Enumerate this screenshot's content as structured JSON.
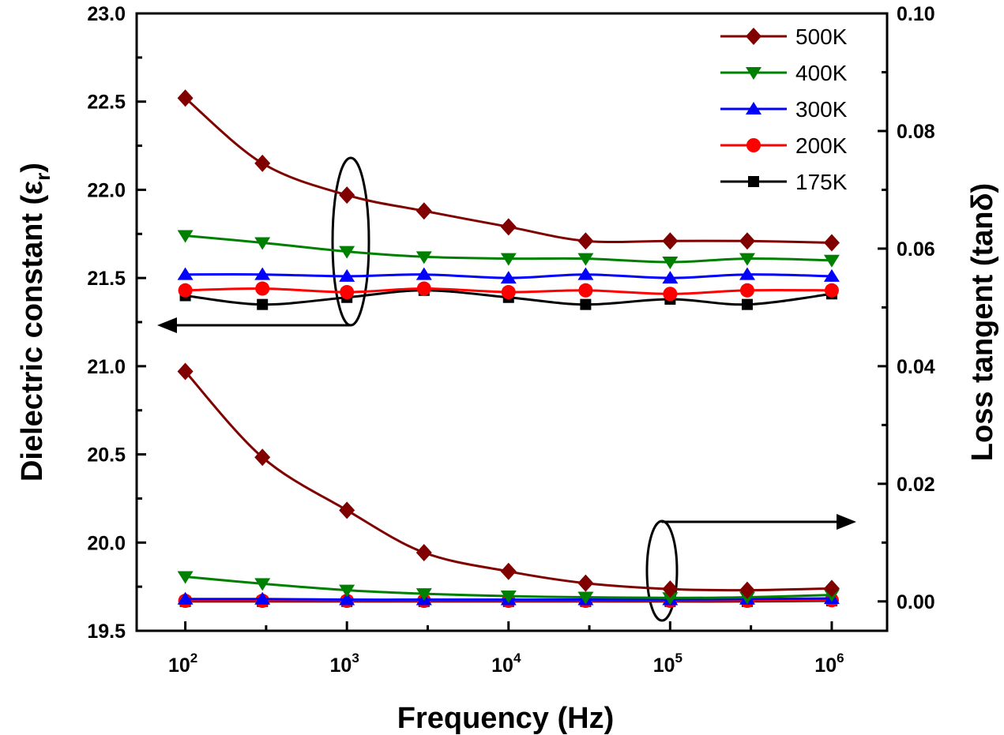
{
  "chart_data": {
    "type": "line",
    "xlabel": "Frequency (Hz)",
    "ylabel_left_main": "Dielectric constant (",
    "ylabel_left_symbol": "ε",
    "ylabel_left_sub": "r",
    "ylabel_left_close": ")",
    "ylabel_right": "Loss tangent (tanδ)",
    "x_scale": "log",
    "xlim": [
      50,
      2200000
    ],
    "ylim_left": [
      19.5,
      23.0
    ],
    "ylim_right": [
      -0.005,
      0.1
    ],
    "x_ticks": [
      {
        "value": 100,
        "base": "10",
        "exp": "2"
      },
      {
        "value": 1000,
        "base": "10",
        "exp": "3"
      },
      {
        "value": 10000,
        "base": "10",
        "exp": "4"
      },
      {
        "value": 100000,
        "base": "10",
        "exp": "5"
      },
      {
        "value": 1000000,
        "base": "10",
        "exp": "6"
      }
    ],
    "y_left_ticks": [
      "19.5",
      "20.0",
      "20.5",
      "21.0",
      "21.5",
      "22.0",
      "22.5",
      "23.0"
    ],
    "y_right_ticks": [
      "0.00",
      "0.02",
      "0.04",
      "0.06",
      "0.08",
      "0.10"
    ],
    "x": [
      100,
      300,
      1000,
      3000,
      10000,
      30000,
      100000,
      300000,
      1000000
    ],
    "legend_position": "top-right",
    "series": [
      {
        "name": "500K",
        "color": "#800000",
        "marker": "diamond",
        "dielectric_constant": [
          22.52,
          22.15,
          21.97,
          21.88,
          21.79,
          21.71,
          21.71,
          21.71,
          21.7
        ],
        "loss_tangent": [
          0.0391,
          0.0245,
          0.0155,
          0.0083,
          0.0051,
          0.0031,
          0.0021,
          0.0019,
          0.0022
        ]
      },
      {
        "name": "400K",
        "color": "#008000",
        "marker": "triangle-down",
        "dielectric_constant": [
          21.74,
          21.7,
          21.65,
          21.62,
          21.61,
          21.61,
          21.59,
          21.61,
          21.6
        ],
        "loss_tangent": [
          0.0042,
          0.003,
          0.0019,
          0.0013,
          0.0009,
          0.0007,
          0.0006,
          0.0007,
          0.0011
        ]
      },
      {
        "name": "300K",
        "color": "#0000FF",
        "marker": "triangle-up",
        "dielectric_constant": [
          21.52,
          21.52,
          21.51,
          21.52,
          21.5,
          21.52,
          21.5,
          21.52,
          21.51
        ],
        "loss_tangent": [
          0.0004,
          0.0004,
          0.0003,
          0.0003,
          0.0003,
          0.0003,
          0.0003,
          0.0004,
          0.0005
        ]
      },
      {
        "name": "200K",
        "color": "#FF0000",
        "marker": "circle",
        "dielectric_constant": [
          21.43,
          21.44,
          21.42,
          21.44,
          21.42,
          21.43,
          21.41,
          21.43,
          21.43
        ],
        "loss_tangent": [
          0.0001,
          0.0001,
          0.0001,
          0.0001,
          0.0001,
          0.0001,
          0.0001,
          0.0001,
          0.0002
        ]
      },
      {
        "name": "175K",
        "color": "#000000",
        "marker": "square",
        "dielectric_constant": [
          21.4,
          21.35,
          21.39,
          21.43,
          21.39,
          21.35,
          21.38,
          21.35,
          21.41
        ],
        "loss_tangent": [
          0.0,
          0.0,
          0.0,
          0.0,
          0.0,
          0.0,
          0.0,
          0.0,
          0.0001
        ]
      }
    ]
  }
}
